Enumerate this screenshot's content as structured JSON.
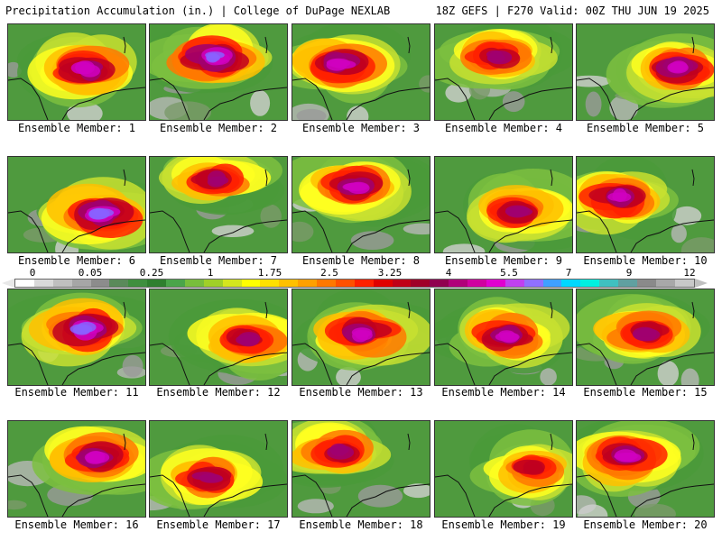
{
  "header": {
    "left_title": "Precipitation Accumulation (in.) | College of DuPage NEXLAB",
    "right_title": "18Z GEFS | F270 Valid: 00Z THU JUN 19 2025"
  },
  "members": [
    {
      "label": "Ensemble Member: 1",
      "intensity": 0.72
    },
    {
      "label": "Ensemble Member: 2",
      "intensity": 0.8
    },
    {
      "label": "Ensemble Member: 3",
      "intensity": 0.78
    },
    {
      "label": "Ensemble Member: 4",
      "intensity": 0.6
    },
    {
      "label": "Ensemble Member: 5",
      "intensity": 0.75
    },
    {
      "label": "Ensemble Member: 6",
      "intensity": 0.82
    },
    {
      "label": "Ensemble Member: 7",
      "intensity": 0.55
    },
    {
      "label": "Ensemble Member: 8",
      "intensity": 0.68
    },
    {
      "label": "Ensemble Member: 9",
      "intensity": 0.58
    },
    {
      "label": "Ensemble Member: 10",
      "intensity": 0.74
    },
    {
      "label": "Ensemble Member: 11",
      "intensity": 0.92
    },
    {
      "label": "Ensemble Member: 12",
      "intensity": 0.62
    },
    {
      "label": "Ensemble Member: 13",
      "intensity": 0.76
    },
    {
      "label": "Ensemble Member: 14",
      "intensity": 0.66
    },
    {
      "label": "Ensemble Member: 15",
      "intensity": 0.5
    },
    {
      "label": "Ensemble Member: 16",
      "intensity": 0.78
    },
    {
      "label": "Ensemble Member: 17",
      "intensity": 0.64
    },
    {
      "label": "Ensemble Member: 18",
      "intensity": 0.52
    },
    {
      "label": "Ensemble Member: 19",
      "intensity": 0.48
    },
    {
      "label": "Ensemble Member: 20",
      "intensity": 0.66
    }
  ],
  "colorbar": {
    "labels": [
      "0",
      "0.05",
      "0.25",
      "1",
      "1.75",
      "2.5",
      "3.25",
      "4",
      "5.5",
      "7",
      "9",
      "12"
    ],
    "colors": [
      "#ffffff",
      "#d9d9d9",
      "#bfbfbf",
      "#a6a6a6",
      "#8c8c8c",
      "#5a8a5a",
      "#3f8f3f",
      "#2f7f2f",
      "#4aa54a",
      "#78be3c",
      "#a0d028",
      "#d4e61e",
      "#ffff00",
      "#ffe000",
      "#ffc000",
      "#ffa000",
      "#ff7800",
      "#ff5000",
      "#ff2000",
      "#e00000",
      "#c00018",
      "#a00028",
      "#900050",
      "#b0007a",
      "#d000a0",
      "#e000d0",
      "#c040f0",
      "#9070ff",
      "#40a0ff",
      "#00d8ff",
      "#00f0e0",
      "#40c0c0",
      "#60a0a0",
      "#8a8a8a",
      "#a8a8a8",
      "#c8c8c8"
    ]
  }
}
